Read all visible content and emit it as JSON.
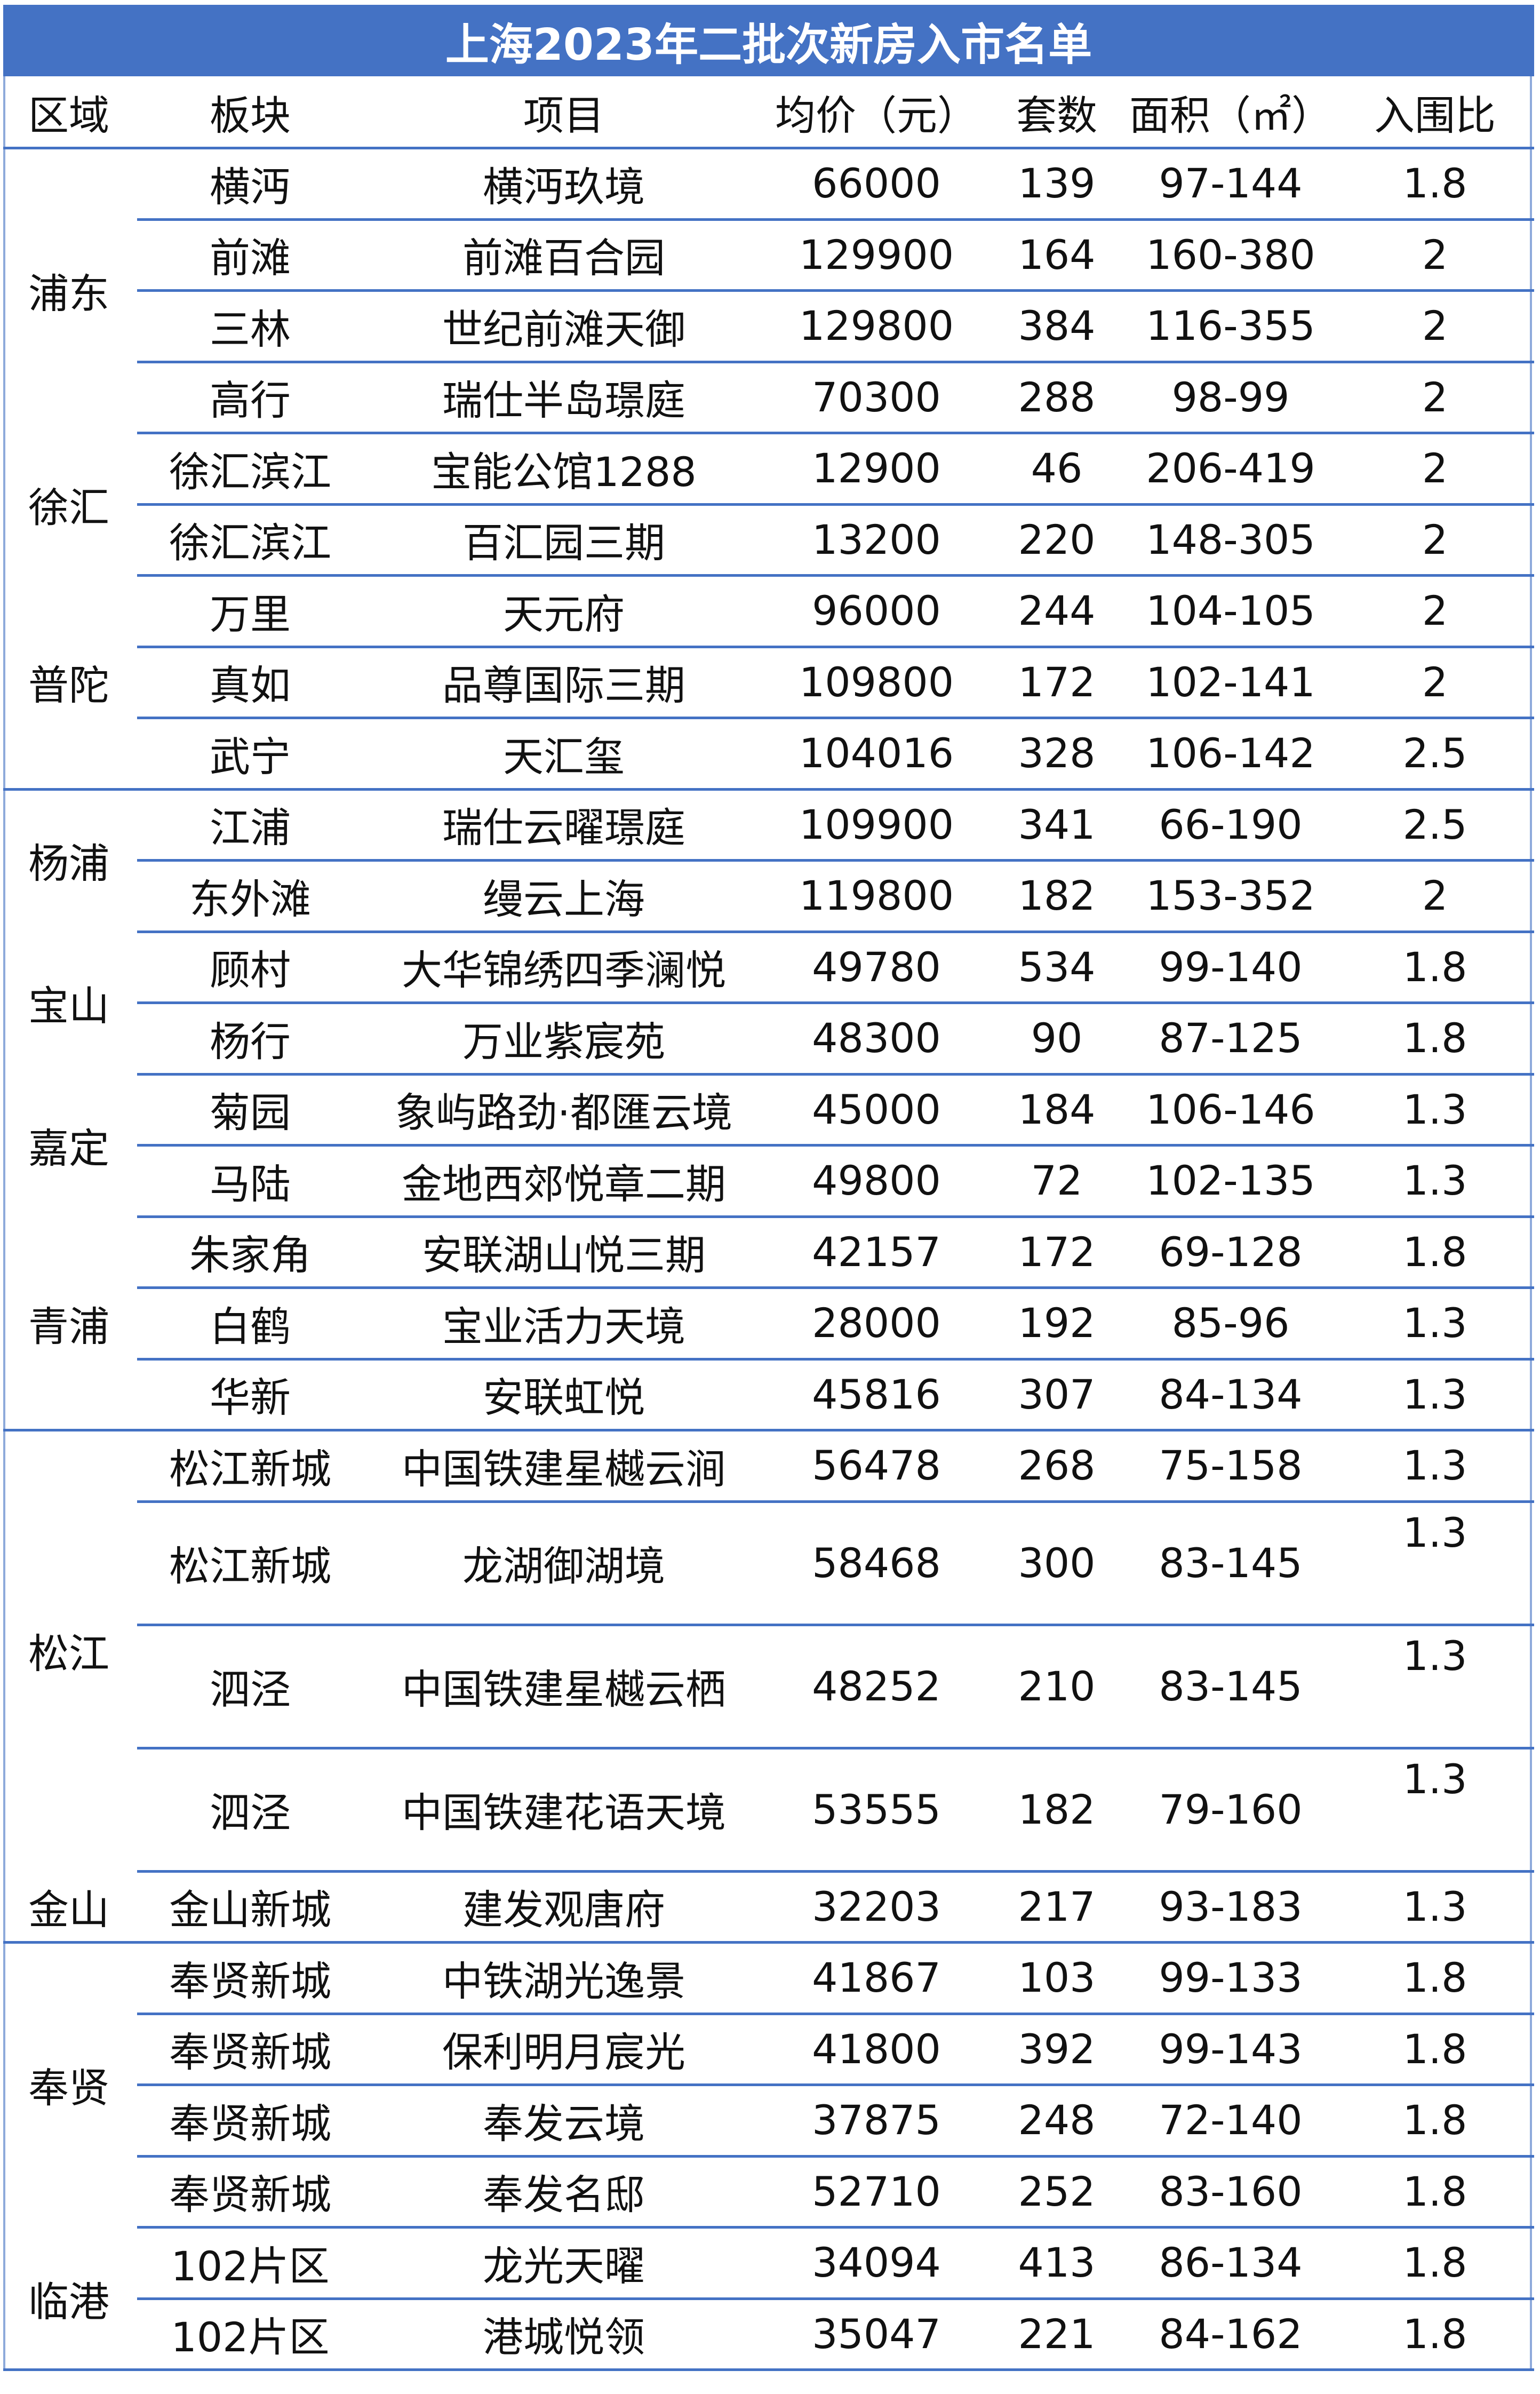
{
  "title": "上海2023年二批次新房入市名单",
  "colors": {
    "header_bg": "#4472C4",
    "title_text": "#FFFFFF",
    "grid_line": "#4472C4"
  },
  "headers": [
    "区域",
    "板块",
    "项目",
    "均价（元）",
    "套数",
    "面积（㎡）",
    "入围比"
  ],
  "districts": [
    {
      "name": "浦东",
      "rows": 4
    },
    {
      "name": "徐汇",
      "rows": 2
    },
    {
      "name": "普陀",
      "rows": 3
    },
    {
      "name": "杨浦",
      "rows": 2
    },
    {
      "name": "宝山",
      "rows": 2
    },
    {
      "name": "嘉定",
      "rows": 2
    },
    {
      "name": "青浦",
      "rows": 3
    },
    {
      "name": "松江",
      "rows": 4
    },
    {
      "name": "金山",
      "rows": 1
    },
    {
      "name": "奉贤",
      "rows": 4
    },
    {
      "name": "临港",
      "rows": 2
    }
  ],
  "rows": [
    [
      "横沔",
      "横沔玖境",
      "66000",
      "139",
      "97-144",
      "1.8"
    ],
    [
      "前滩",
      "前滩百合园",
      "129900",
      "164",
      "160-380",
      "2"
    ],
    [
      "三林",
      "世纪前滩天御",
      "129800",
      "384",
      "116-355",
      "2"
    ],
    [
      "高行",
      "瑞仕半岛璟庭",
      "70300",
      "288",
      "98-99",
      "2"
    ],
    [
      "徐汇滨江",
      "宝能公馆1288",
      "12900",
      "46",
      "206-419",
      "2"
    ],
    [
      "徐汇滨江",
      "百汇园三期",
      "13200",
      "220",
      "148-305",
      "2"
    ],
    [
      "万里",
      "天元府",
      "96000",
      "244",
      "104-105",
      "2"
    ],
    [
      "真如",
      "品尊国际三期",
      "109800",
      "172",
      "102-141",
      "2"
    ],
    [
      "武宁",
      "天汇玺",
      "104016",
      "328",
      "106-142",
      "2.5"
    ],
    [
      "江浦",
      "瑞仕云曜璟庭",
      "109900",
      "341",
      "66-190",
      "2.5"
    ],
    [
      "东外滩",
      "缦云上海",
      "119800",
      "182",
      "153-352",
      "2"
    ],
    [
      "顾村",
      "大华锦绣四季澜悦",
      "49780",
      "534",
      "99-140",
      "1.8"
    ],
    [
      "杨行",
      "万业紫宸苑",
      "48300",
      "90",
      "87-125",
      "1.8"
    ],
    [
      "菊园",
      "象屿路劲·都匯云境",
      "45000",
      "184",
      "106-146",
      "1.3"
    ],
    [
      "马陆",
      "金地西郊悦章二期",
      "49800",
      "72",
      "102-135",
      "1.3"
    ],
    [
      "朱家角",
      "安联湖山悦三期",
      "42157",
      "172",
      "69-128",
      "1.8"
    ],
    [
      "白鹤",
      "宝业活力天境",
      "28000",
      "192",
      "85-96",
      "1.3"
    ],
    [
      "华新",
      "安联虹悦",
      "45816",
      "307",
      "84-134",
      "1.3"
    ],
    [
      "松江新城",
      "中国铁建星樾云涧",
      "56478",
      "268",
      "75-158",
      "1.3"
    ],
    [
      "松江新城",
      "龙湖御湖境",
      "58468",
      "300",
      "83-145",
      "1.3"
    ],
    [
      "泗泾",
      "中国铁建星樾云栖",
      "48252",
      "210",
      "83-145",
      "1.3"
    ],
    [
      "泗泾",
      "中国铁建花语天境",
      "53555",
      "182",
      "79-160",
      "1.3"
    ],
    [
      "金山新城",
      "建发观唐府",
      "32203",
      "217",
      "93-183",
      "1.3"
    ],
    [
      "奉贤新城",
      "中铁湖光逸景",
      "41867",
      "103",
      "99-133",
      "1.8"
    ],
    [
      "奉贤新城",
      "保利明月宸光",
      "41800",
      "392",
      "99-143",
      "1.8"
    ],
    [
      "奉贤新城",
      "奉发云境",
      "37875",
      "248",
      "72-140",
      "1.8"
    ],
    [
      "奉贤新城",
      "奉发名邸",
      "52710",
      "252",
      "83-160",
      "1.8"
    ],
    [
      "102片区",
      "龙光天曜",
      "34094",
      "413",
      "86-134",
      "1.8"
    ],
    [
      "102片区",
      "港城悦领",
      "35047",
      "221",
      "84-162",
      "1.8"
    ]
  ]
}
